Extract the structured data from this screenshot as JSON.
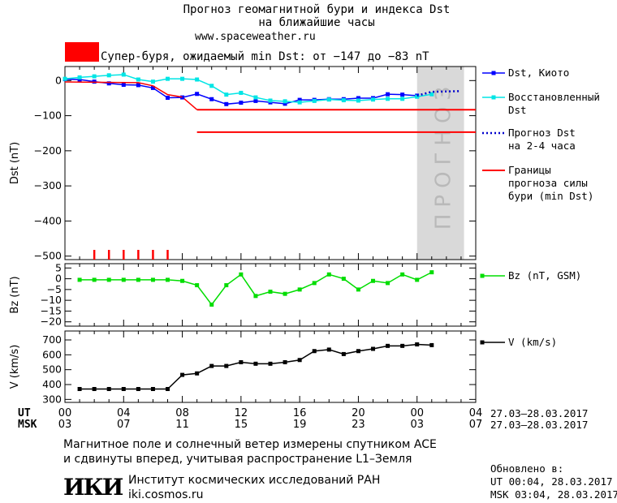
{
  "header": {
    "title_line1": "Прогноз геомагнитной бури и индекса Dst",
    "title_line2": "на ближайшие часы",
    "site": "www.spaceweather.ru",
    "storm_label": "Супер-буря, ожидаемый min Dst: от −147 до −83 nT",
    "storm_color": "#ff0000"
  },
  "legend": {
    "dst_kyoto": "Dst, Киото",
    "dst_restored_1": "Восстановленный",
    "dst_restored_2": "Dst",
    "forecast_1": "Прогноз Dst",
    "forecast_2": "на 2-4 часа",
    "bounds_1": "Границы",
    "bounds_2": "прогноза силы",
    "bounds_3": "бури (min Dst)",
    "bz": "Bz (nT, GSM)",
    "v": "V (km/s)"
  },
  "chart_data": [
    {
      "type": "line",
      "name": "dst-panel",
      "ylabel": "Dst (nT)",
      "ylim": [
        -510,
        40
      ],
      "yticks": [
        0,
        -100,
        -200,
        -300,
        -400,
        -500
      ],
      "xlim": [
        0,
        28
      ],
      "forecast_band": [
        24,
        27.2
      ],
      "forecast_text": "ПРОГНОЗ",
      "series": [
        {
          "name": "Dst, Киото",
          "color": "#0000ff",
          "x": [
            0,
            1,
            2,
            3,
            4,
            5,
            6,
            7,
            8,
            9,
            10,
            11,
            12,
            13,
            14,
            15,
            16,
            17,
            18,
            19,
            20,
            21,
            22,
            23,
            24
          ],
          "y": [
            4,
            3,
            -3,
            -8,
            -12,
            -13,
            -21,
            -49,
            -48,
            -38,
            -53,
            -67,
            -63,
            -58,
            -62,
            -66,
            -55,
            -55,
            -53,
            -53,
            -50,
            -50,
            -39,
            -40,
            -43
          ]
        },
        {
          "name": "Восстановленный Dst",
          "color": "#00e5e5",
          "x": [
            0,
            1,
            2,
            3,
            4,
            5,
            6,
            7,
            8,
            9,
            10,
            11,
            12,
            13,
            14,
            15,
            16,
            17,
            18,
            19,
            20,
            21,
            22,
            23,
            24,
            25
          ],
          "y": [
            5,
            9,
            12,
            15,
            17,
            3,
            -3,
            5,
            5,
            3,
            -15,
            -40,
            -35,
            -48,
            -57,
            -59,
            -62,
            -58,
            -54,
            -56,
            -57,
            -54,
            -52,
            -52,
            -46,
            -39
          ]
        },
        {
          "name": "Прогноз Dst",
          "color": "#0000cc",
          "x": [
            24,
            25,
            26,
            27
          ],
          "y": [
            -43,
            -32,
            -31,
            -30
          ]
        },
        {
          "name": "Dst red line",
          "color": "#ff0000",
          "x": [
            0,
            5,
            6,
            7,
            8
          ],
          "y": [
            -4,
            -6,
            -15,
            -40,
            -47
          ]
        }
      ],
      "bounds": {
        "upper": -83,
        "lower": -147,
        "x_start": 9,
        "upper_end": 28,
        "lower_end": 28
      },
      "storm_ticks_x": [
        2,
        3,
        4,
        5,
        6,
        7
      ]
    },
    {
      "type": "line",
      "name": "bz-panel",
      "ylabel": "Bz (nT)",
      "ylim": [
        -22,
        7
      ],
      "yticks": [
        5,
        0,
        -5,
        -10,
        -15,
        -20
      ],
      "xlim": [
        0,
        28
      ],
      "series": [
        {
          "name": "Bz (nT, GSM)",
          "color": "#00dd00",
          "x": [
            1,
            2,
            3,
            4,
            5,
            6,
            7,
            8,
            9,
            10,
            11,
            12,
            13,
            14,
            15,
            16,
            17,
            18,
            19,
            20,
            21,
            22,
            23,
            24,
            25
          ],
          "y": [
            -0.5,
            -0.5,
            -0.5,
            -0.5,
            -0.5,
            -0.5,
            -0.5,
            -1,
            -3,
            -12,
            -3,
            2,
            -8,
            -6,
            -7,
            -5,
            -2,
            2,
            0,
            -5,
            -1,
            -2,
            2,
            -0.5,
            3
          ]
        }
      ]
    },
    {
      "type": "line",
      "name": "v-panel",
      "ylabel": "V (km/s)",
      "ylim": [
        280,
        760
      ],
      "yticks": [
        300,
        400,
        500,
        600,
        700
      ],
      "xlim": [
        0,
        28
      ],
      "series": [
        {
          "name": "V (km/s)",
          "color": "#000000",
          "x": [
            1,
            2,
            3,
            4,
            5,
            6,
            7,
            8,
            9,
            10,
            11,
            12,
            13,
            14,
            15,
            16,
            17,
            18,
            19,
            20,
            21,
            22,
            23,
            24,
            25
          ],
          "y": [
            370,
            370,
            370,
            370,
            370,
            370,
            370,
            465,
            475,
            525,
            525,
            550,
            540,
            540,
            550,
            565,
            625,
            635,
            605,
            625,
            640,
            660,
            660,
            670,
            665
          ]
        }
      ],
      "xticks": [
        0,
        4,
        8,
        12,
        16,
        20,
        24,
        28
      ],
      "xtick_ut": [
        "00",
        "04",
        "08",
        "12",
        "16",
        "20",
        "00",
        "04"
      ],
      "xtick_msk": [
        "03",
        "07",
        "11",
        "15",
        "19",
        "23",
        "03",
        "07"
      ],
      "ut_label": "UT",
      "msk_label": "MSK",
      "ut_range": "27.03–28.03.2017",
      "msk_range": "27.03–28.03.2017"
    }
  ],
  "footer": {
    "line1": "Магнитное поле и солнечный ветер измерены спутником ACE",
    "line2": "и сдвинуты вперед, учитывая распространение L1–Земля",
    "institute": "Институт космических исследований РАН",
    "institute_site": "iki.cosmos.ru",
    "logo_text": "ИКИ",
    "updated_label": "Обновлено в:",
    "updated_ut": "UT  00:04, 28.03.2017",
    "updated_msk": "MSK 03:04, 28.03.2017"
  }
}
